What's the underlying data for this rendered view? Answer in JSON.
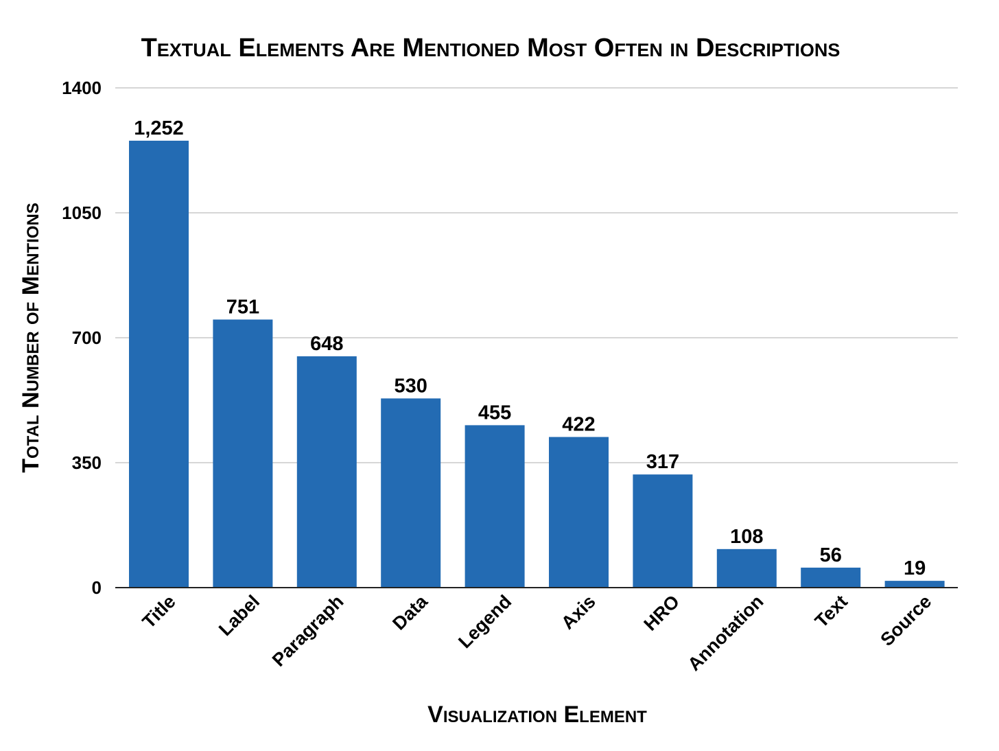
{
  "chart_data": {
    "type": "bar",
    "title": "Textual Elements Are Mentioned Most Often in Descriptions",
    "xlabel": "Visualization Element",
    "ylabel": "Total Number of Mentions",
    "categories": [
      "Title",
      "Label",
      "Paragraph",
      "Data",
      "Legend",
      "Axis",
      "HRO",
      "Annotation",
      "Text",
      "Source"
    ],
    "values": [
      1252,
      751,
      648,
      530,
      455,
      422,
      317,
      108,
      56,
      19
    ],
    "data_labels": [
      "1,252",
      "751",
      "648",
      "530",
      "455",
      "422",
      "317",
      "108",
      "56",
      "19"
    ],
    "ylim": [
      0,
      1400
    ],
    "yticks": [
      0,
      350,
      700,
      1050,
      1400
    ],
    "grid": true,
    "legend": "none",
    "bar_color": "#236bb3"
  }
}
